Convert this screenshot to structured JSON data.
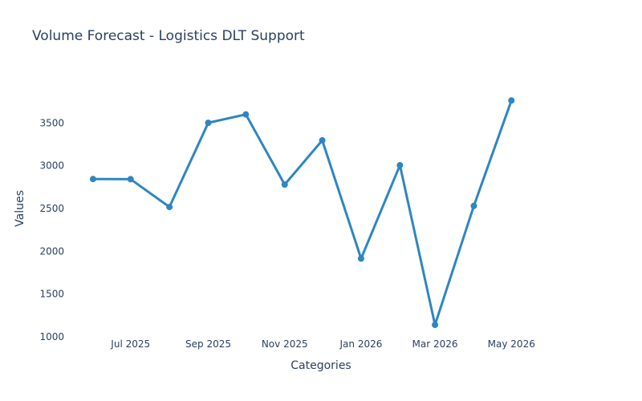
{
  "chart_data": {
    "type": "line",
    "title": "Volume Forecast - Logistics DLT Support",
    "xlabel": "Categories",
    "ylabel": "Values",
    "x": [
      "2025-06-01",
      "2025-07-01",
      "2025-08-01",
      "2025-09-01",
      "2025-10-01",
      "2025-11-01",
      "2025-12-01",
      "2026-01-01",
      "2026-02-01",
      "2026-03-01",
      "2026-04-01",
      "2026-05-01"
    ],
    "xlim": [
      "2025-05-09",
      "2026-06-23"
    ],
    "x_ticks": [
      {
        "date": "2025-07-01",
        "label": "Jul 2025"
      },
      {
        "date": "2025-09-01",
        "label": "Sep 2025"
      },
      {
        "date": "2025-11-01",
        "label": "Nov 2025"
      },
      {
        "date": "2026-01-01",
        "label": "Jan 2026"
      },
      {
        "date": "2026-03-01",
        "label": "Mar 2026"
      },
      {
        "date": "2026-05-01",
        "label": "May 2026"
      }
    ],
    "ylim": [
      1000,
      4000
    ],
    "y_ticks": [
      1000,
      1500,
      2000,
      2500,
      3000,
      3500
    ],
    "series": [
      {
        "values": [
          2845,
          2843,
          2518,
          3502,
          3600,
          2780,
          3297,
          1915,
          3006,
          1140,
          2530,
          3763
        ],
        "color": "#2e86c1"
      }
    ],
    "grid": false,
    "legend": false
  }
}
